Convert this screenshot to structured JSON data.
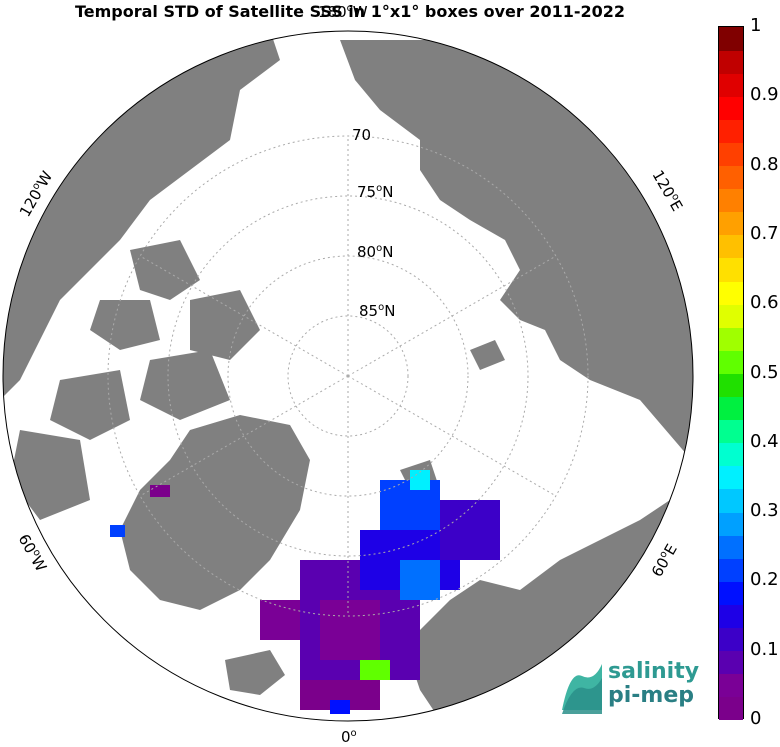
{
  "title": "Temporal STD of Satellite SSS in 1°x1° boxes over 2011-2022",
  "latitude_labels": [
    {
      "deg": "70",
      "sup": "",
      "suffix": ""
    },
    {
      "deg": "75",
      "sup": "o",
      "suffix": "N"
    },
    {
      "deg": "80",
      "sup": "o",
      "suffix": "N"
    },
    {
      "deg": "85",
      "sup": "o",
      "suffix": "N"
    }
  ],
  "longitude_labels": [
    {
      "deg": "180",
      "sup": "o",
      "suffix": "W"
    },
    {
      "deg": "120",
      "sup": "o",
      "suffix": "W"
    },
    {
      "deg": "120",
      "sup": "o",
      "suffix": "E"
    },
    {
      "deg": "60",
      "sup": "o",
      "suffix": "W"
    },
    {
      "deg": "60",
      "sup": "o",
      "suffix": "E"
    },
    {
      "deg": "0",
      "sup": "o",
      "suffix": ""
    }
  ],
  "colorbar": {
    "min": 0,
    "max": 1,
    "ticks": [
      "0",
      "0.1",
      "0.2",
      "0.3",
      "0.4",
      "0.5",
      "0.6",
      "0.7",
      "0.8",
      "0.9",
      "1"
    ],
    "colors": [
      "#7b008b",
      "#7a0096",
      "#5a00b0",
      "#3c00c8",
      "#1e00e6",
      "#0010ff",
      "#0040ff",
      "#0070ff",
      "#00a0ff",
      "#00c8ff",
      "#00f0ff",
      "#00ffd0",
      "#00ff90",
      "#00f040",
      "#20e000",
      "#60ff00",
      "#a0ff00",
      "#e0ff00",
      "#ffff00",
      "#ffe000",
      "#ffc000",
      "#ffa000",
      "#ff8000",
      "#ff6000",
      "#ff4000",
      "#ff2000",
      "#ff0000",
      "#e00000",
      "#c00000",
      "#800000"
    ]
  },
  "logo": {
    "line1": "salinity",
    "line2": "pi-mep"
  },
  "colors": {
    "land": "#808080",
    "ocean": "#ffffff",
    "grid": "#aaaaaa"
  }
}
